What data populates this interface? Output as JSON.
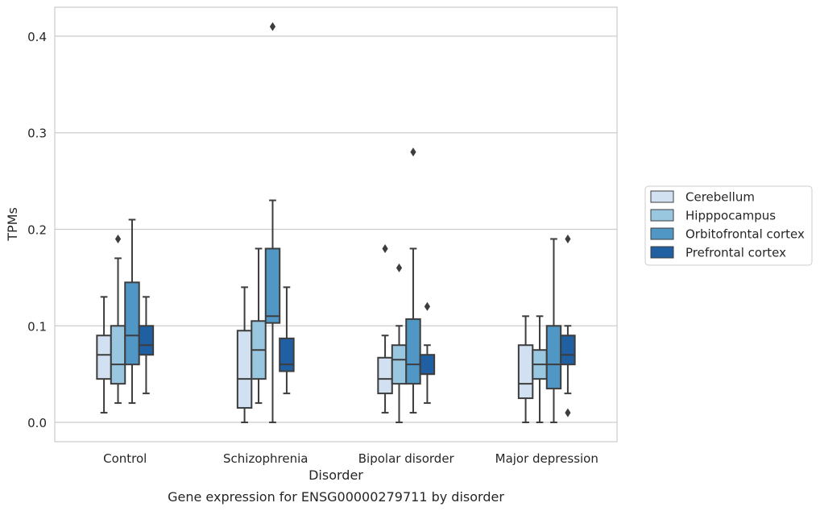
{
  "chart_data": {
    "type": "boxplot",
    "title": "",
    "caption": "Gene expression for ENSG00000279711 by disorder",
    "xlabel": "Disorder",
    "ylabel": "TPMs",
    "ylim": [
      -0.02,
      0.43
    ],
    "yticks": [
      0.0,
      0.1,
      0.2,
      0.3,
      0.4
    ],
    "ytick_labels": [
      "0.0",
      "0.1",
      "0.2",
      "0.3",
      "0.4"
    ],
    "grid": "horizontal",
    "legend_position": "right",
    "categories": [
      "Control",
      "Schizophrenia",
      "Bipolar disorder",
      "Major depression"
    ],
    "series": [
      {
        "name": "Cerebellum",
        "color": "#d1e1f1",
        "boxes": [
          {
            "whislo": 0.01,
            "q1": 0.045,
            "med": 0.07,
            "q3": 0.09,
            "whishi": 0.13,
            "fliers": []
          },
          {
            "whislo": 0.0,
            "q1": 0.015,
            "med": 0.045,
            "q3": 0.095,
            "whishi": 0.14,
            "fliers": []
          },
          {
            "whislo": 0.01,
            "q1": 0.03,
            "med": 0.045,
            "q3": 0.067,
            "whishi": 0.09,
            "fliers": [
              0.18
            ]
          },
          {
            "whislo": 0.0,
            "q1": 0.025,
            "med": 0.04,
            "q3": 0.08,
            "whishi": 0.11,
            "fliers": []
          }
        ]
      },
      {
        "name": "Hipppocampus",
        "color": "#9ac7e0",
        "boxes": [
          {
            "whislo": 0.02,
            "q1": 0.04,
            "med": 0.06,
            "q3": 0.1,
            "whishi": 0.17,
            "fliers": [
              0.19
            ]
          },
          {
            "whislo": 0.02,
            "q1": 0.045,
            "med": 0.075,
            "q3": 0.105,
            "whishi": 0.18,
            "fliers": []
          },
          {
            "whislo": 0.0,
            "q1": 0.04,
            "med": 0.065,
            "q3": 0.08,
            "whishi": 0.1,
            "fliers": [
              0.16
            ]
          },
          {
            "whislo": 0.0,
            "q1": 0.045,
            "med": 0.06,
            "q3": 0.075,
            "whishi": 0.11,
            "fliers": []
          }
        ]
      },
      {
        "name": "Orbitofrontal cortex",
        "color": "#5097c6",
        "boxes": [
          {
            "whislo": 0.02,
            "q1": 0.06,
            "med": 0.09,
            "q3": 0.145,
            "whishi": 0.21,
            "fliers": []
          },
          {
            "whislo": 0.0,
            "q1": 0.103,
            "med": 0.11,
            "q3": 0.18,
            "whishi": 0.23,
            "fliers": [
              0.41
            ]
          },
          {
            "whislo": 0.01,
            "q1": 0.04,
            "med": 0.06,
            "q3": 0.107,
            "whishi": 0.18,
            "fliers": [
              0.28
            ]
          },
          {
            "whislo": 0.0,
            "q1": 0.035,
            "med": 0.06,
            "q3": 0.1,
            "whishi": 0.19,
            "fliers": []
          }
        ]
      },
      {
        "name": "Prefrontal cortex",
        "color": "#1f5fa2",
        "boxes": [
          {
            "whislo": 0.03,
            "q1": 0.07,
            "med": 0.08,
            "q3": 0.1,
            "whishi": 0.13,
            "fliers": []
          },
          {
            "whislo": 0.03,
            "q1": 0.053,
            "med": 0.06,
            "q3": 0.087,
            "whishi": 0.14,
            "fliers": []
          },
          {
            "whislo": 0.02,
            "q1": 0.05,
            "med": 0.05,
            "q3": 0.07,
            "whishi": 0.08,
            "fliers": [
              0.12
            ]
          },
          {
            "whislo": 0.03,
            "q1": 0.06,
            "med": 0.07,
            "q3": 0.09,
            "whishi": 0.1,
            "fliers": [
              0.19,
              0.01
            ]
          }
        ]
      }
    ]
  }
}
